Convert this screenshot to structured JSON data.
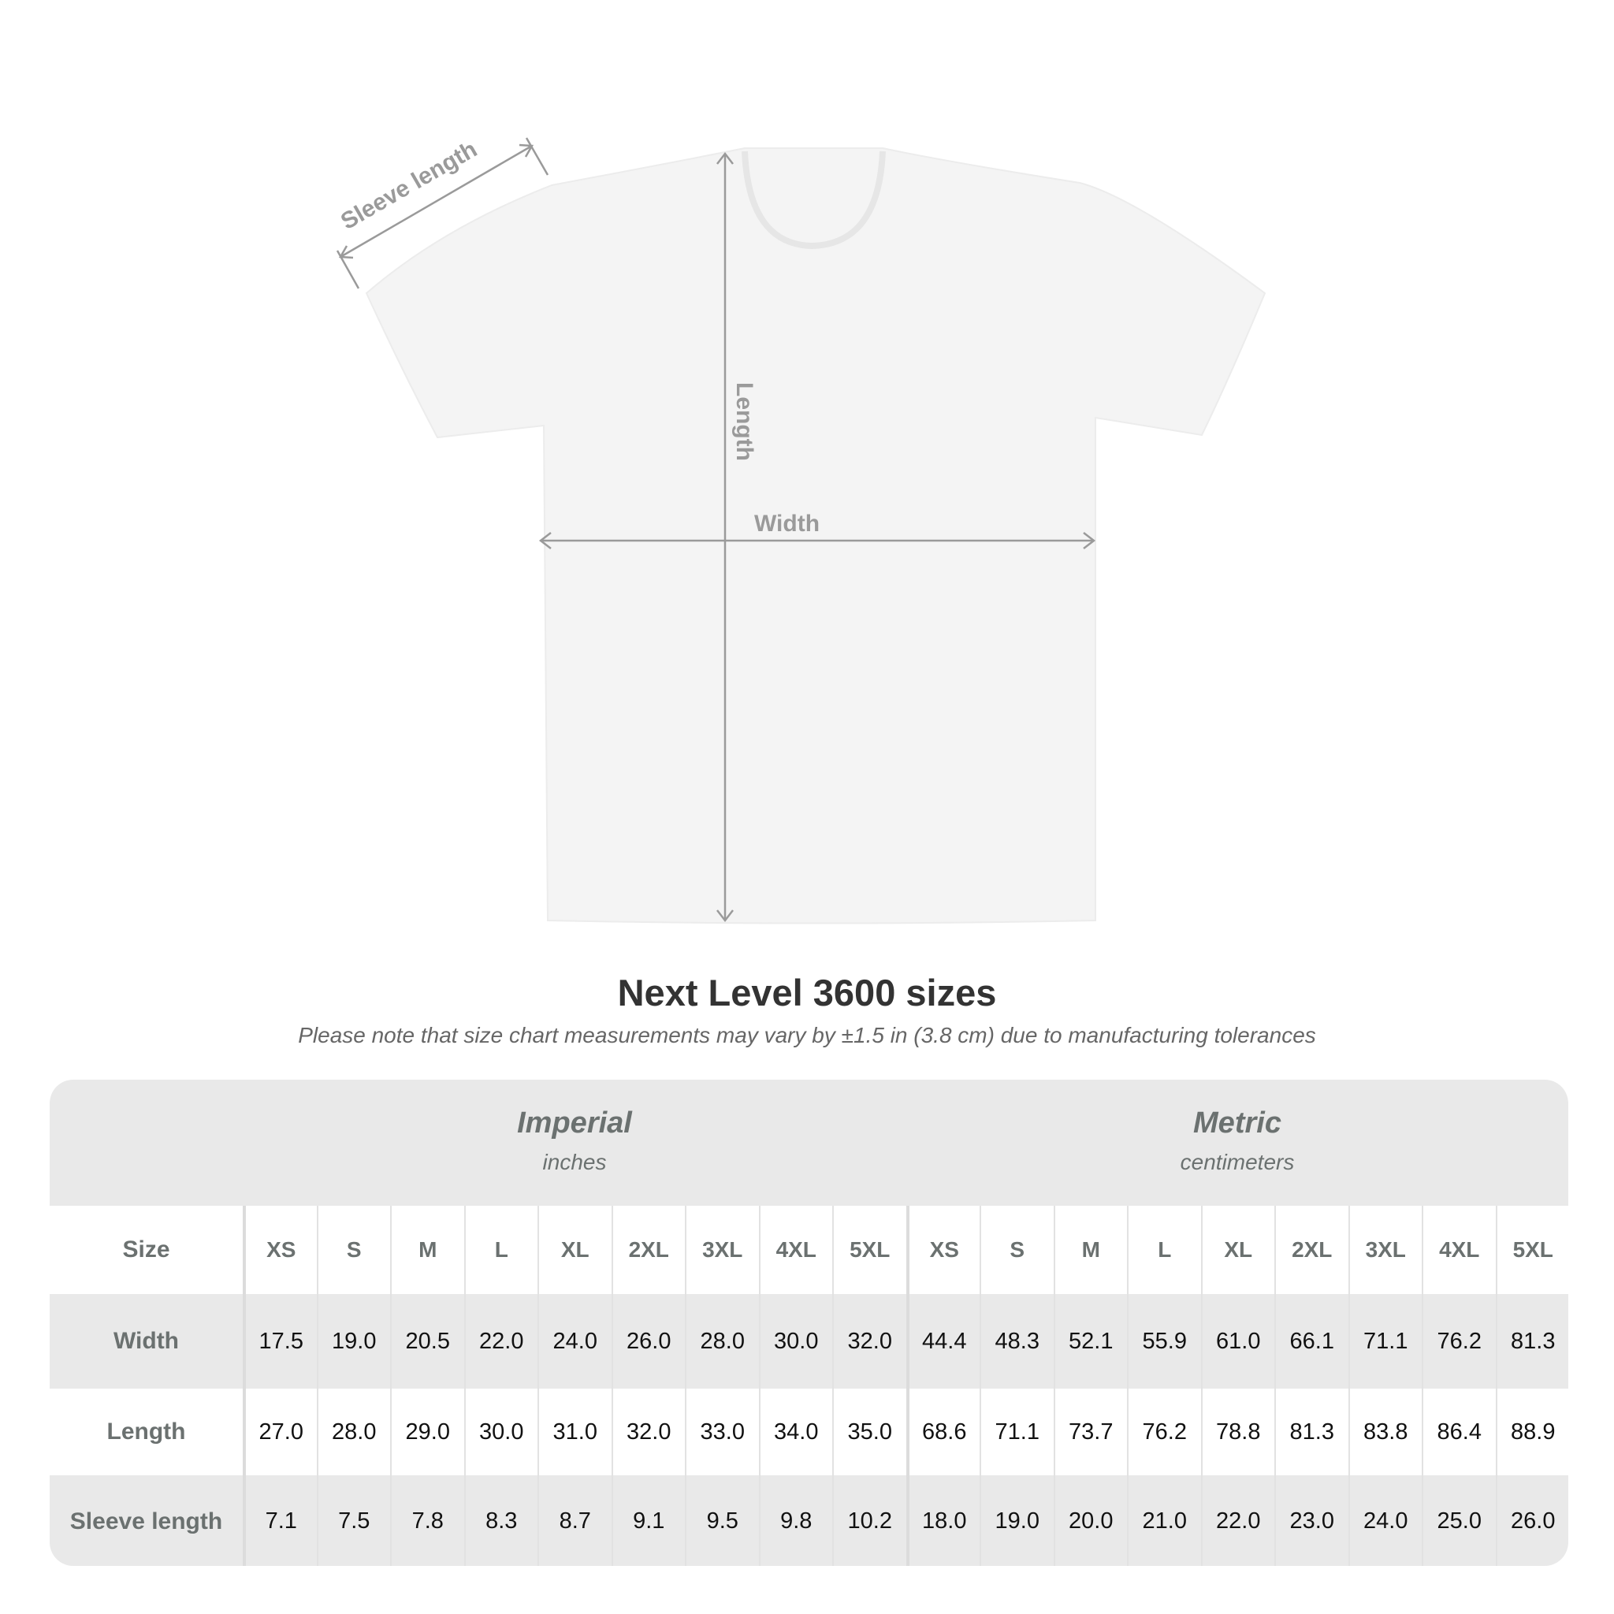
{
  "diagram": {
    "labels": {
      "sleeve": "Sleeve length",
      "length": "Length",
      "width": "Width"
    },
    "shirt_color": "#f4f4f4",
    "line_color": "#9a9a9a"
  },
  "title": "Next Level 3600 sizes",
  "subtitle": "Please note that size chart measurements may vary by ±1.5 in (3.8 cm) due to manufacturing tolerances",
  "table": {
    "imperial": {
      "name": "Imperial",
      "unit": "inches"
    },
    "metric": {
      "name": "Metric",
      "unit": "centimeters"
    },
    "size_label": "Size",
    "sizes": [
      "XS",
      "S",
      "M",
      "L",
      "XL",
      "2XL",
      "3XL",
      "4XL",
      "5XL"
    ],
    "rows": [
      {
        "label": "Width",
        "imperial": [
          "17.5",
          "19.0",
          "20.5",
          "22.0",
          "24.0",
          "26.0",
          "28.0",
          "30.0",
          "32.0"
        ],
        "metric": [
          "44.4",
          "48.3",
          "52.1",
          "55.9",
          "61.0",
          "66.1",
          "71.1",
          "76.2",
          "81.3"
        ]
      },
      {
        "label": "Length",
        "imperial": [
          "27.0",
          "28.0",
          "29.0",
          "30.0",
          "31.0",
          "32.0",
          "33.0",
          "34.0",
          "35.0"
        ],
        "metric": [
          "68.6",
          "71.1",
          "73.7",
          "76.2",
          "78.8",
          "81.3",
          "83.8",
          "86.4",
          "88.9"
        ]
      },
      {
        "label": "Sleeve length",
        "imperial": [
          "7.1",
          "7.5",
          "7.8",
          "8.3",
          "8.7",
          "9.1",
          "9.5",
          "9.8",
          "10.2"
        ],
        "metric": [
          "18.0",
          "19.0",
          "20.0",
          "21.0",
          "22.0",
          "23.0",
          "24.0",
          "25.0",
          "26.0"
        ]
      }
    ]
  }
}
